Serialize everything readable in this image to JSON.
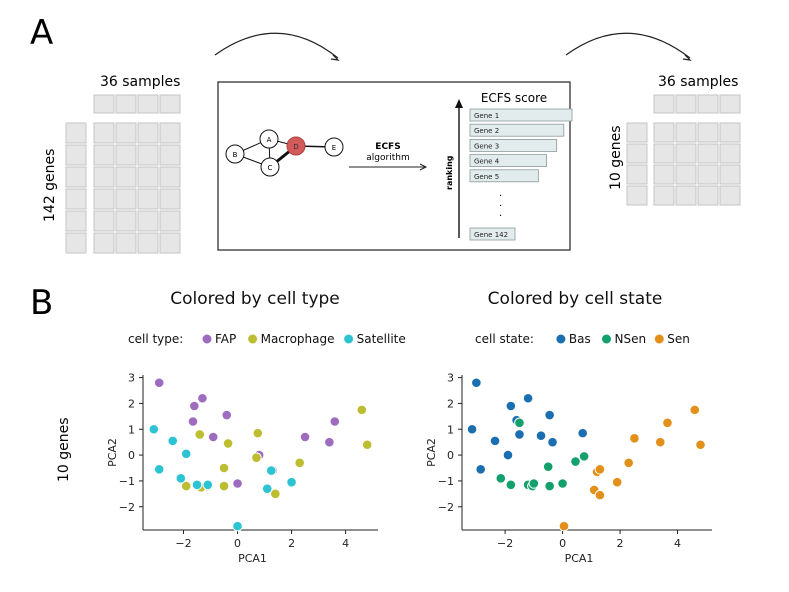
{
  "panel_a": {
    "label": "A",
    "left_matrix": {
      "samples_label": "36 samples",
      "genes_label": "142 genes"
    },
    "right_matrix": {
      "samples_label": "36 samples",
      "genes_label": "10 genes"
    },
    "network_nodes": [
      "A",
      "B",
      "C",
      "D",
      "E"
    ],
    "method_label": "ECFS",
    "method_sublabel": "algorithm",
    "score_title": "ECFS score",
    "ranking_label": "ranking",
    "genes": [
      "Gene 1",
      "Gene 2",
      "Gene 3",
      "Gene 4",
      "Gene 5"
    ],
    "gene_bar_scores": [
      1.0,
      0.92,
      0.85,
      0.75,
      0.67
    ],
    "ellipsis": "·",
    "last_gene": "Gene 142"
  },
  "panel_b": {
    "label": "B",
    "side_label": "10 genes",
    "colors": {
      "FAP": "#9d6cbf",
      "Macrophage": "#bcbd30",
      "Satellite": "#2cc3d3",
      "Bas": "#1b6fb0",
      "NSen": "#14a06c",
      "Sen": "#e2901a"
    }
  },
  "chart_data": [
    {
      "type": "scatter",
      "title": "Colored by cell type",
      "xlabel": "PCA1",
      "ylabel": "PCA2",
      "xlim": [
        -3.5,
        5.2
      ],
      "ylim": [
        -2.9,
        3.1
      ],
      "xticks": [
        "−2",
        "0",
        "2",
        "4"
      ],
      "xtick_values": [
        -2,
        0,
        2,
        4
      ],
      "yticks": [
        "3",
        "2",
        "1",
        "0",
        "−1",
        "−2"
      ],
      "ytick_values": [
        3,
        2,
        1,
        0,
        -1,
        -2
      ],
      "legend_title": "cell type:",
      "series": [
        {
          "name": "FAP",
          "color": "#9d6cbf",
          "x": [
            -2.9,
            -1.3,
            -1.6,
            -1.65,
            -0.4,
            -0.9,
            0,
            0.8,
            1.3,
            2.5,
            3.6,
            3.4
          ],
          "y": [
            2.8,
            2.2,
            1.9,
            1.3,
            1.55,
            0.7,
            -1.1,
            0,
            -0.6,
            0.7,
            1.3,
            0.5
          ]
        },
        {
          "name": "Macrophage",
          "color": "#bcbd30",
          "x": [
            -1.9,
            -1.4,
            -1.1,
            -1.35,
            -0.5,
            -0.5,
            -0.35,
            0.7,
            0.75,
            1.4,
            2.3,
            4.6,
            4.8
          ],
          "y": [
            -1.2,
            0.8,
            -1.2,
            -1.25,
            -0.5,
            -1.2,
            0.45,
            -0.1,
            0.85,
            -1.5,
            -0.3,
            1.75,
            0.4
          ]
        },
        {
          "name": "Satellite",
          "color": "#2cc3d3",
          "x": [
            -3.1,
            -2.9,
            -2.4,
            -1.9,
            -2.1,
            -1.5,
            -1.1,
            0,
            1.1,
            1.25,
            2.0
          ],
          "y": [
            1.0,
            -0.55,
            0.55,
            0.05,
            -0.9,
            -1.15,
            -1.15,
            -2.75,
            -1.3,
            -0.6,
            -1.05
          ]
        }
      ]
    },
    {
      "type": "scatter",
      "title": "Colored by cell state",
      "xlabel": "PCA1",
      "ylabel": "PCA2",
      "xlim": [
        -3.5,
        5.2
      ],
      "ylim": [
        -2.9,
        3.1
      ],
      "xticks": [
        "−2",
        "0",
        "2",
        "4"
      ],
      "xtick_values": [
        -2,
        0,
        2,
        4
      ],
      "yticks": [
        "3",
        "2",
        "1",
        "0",
        "−1",
        "−2"
      ],
      "ytick_values": [
        3,
        2,
        1,
        0,
        -1,
        -2
      ],
      "legend_title": "cell state:",
      "series": [
        {
          "name": "Bas",
          "color": "#1b6fb0",
          "x": [
            -3.0,
            -3.15,
            -2.85,
            -2.35,
            -1.9,
            -1.8,
            -1.5,
            -1.2,
            -1.6,
            -0.75,
            -0.45,
            -0.35,
            0.7
          ],
          "y": [
            2.8,
            1.0,
            -0.55,
            0.55,
            0.0,
            1.9,
            0.8,
            2.2,
            1.35,
            0.75,
            1.55,
            0.5,
            0.85
          ]
        },
        {
          "name": "NSen",
          "color": "#14a06c",
          "x": [
            -2.15,
            -1.8,
            -1.5,
            -1.2,
            -1.05,
            -1.0,
            -0.5,
            -0.45,
            0.0,
            0.45,
            0.75
          ],
          "y": [
            -0.9,
            -1.15,
            1.25,
            -1.15,
            -1.2,
            -1.1,
            -0.45,
            -1.2,
            -1.1,
            -0.25,
            -0.05
          ]
        },
        {
          "name": "Sen",
          "color": "#e2901a",
          "x": [
            0.05,
            1.1,
            1.3,
            1.2,
            1.3,
            1.9,
            2.3,
            2.5,
            3.4,
            3.65,
            4.6,
            4.8
          ],
          "y": [
            -2.75,
            -1.35,
            -1.55,
            -0.65,
            -0.55,
            -1.05,
            -0.3,
            0.65,
            0.5,
            1.25,
            1.75,
            0.4
          ]
        }
      ]
    }
  ]
}
